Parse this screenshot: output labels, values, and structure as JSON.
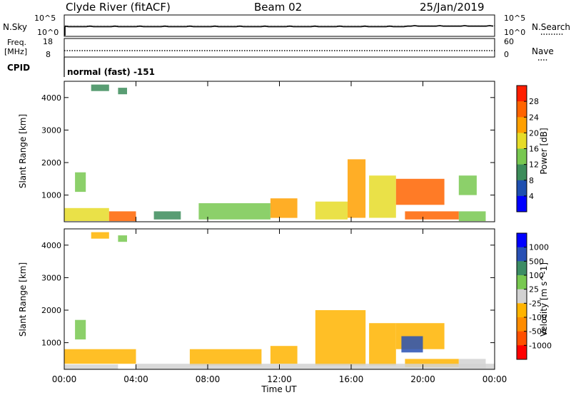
{
  "header": {
    "station": "Clyde River (fitACF)",
    "beam": "Beam 02",
    "date": "25/Jan/2019"
  },
  "strip_panel": {
    "left_label": "N.Sky",
    "left_ticks": [
      "10^5",
      "10^0"
    ],
    "right_label": "N.Search",
    "right_ticks": [
      "10^5",
      "10^0"
    ]
  },
  "freq_panel": {
    "left_label_line1": "Freq.",
    "left_label_line2": "[MHz]",
    "left_ticks": [
      "18",
      "8"
    ],
    "right_label": "Nave",
    "right_ticks": [
      "60",
      "0"
    ]
  },
  "cpid": {
    "label": "CPID",
    "value": "normal (fast) -151"
  },
  "time_axis": {
    "ticks": [
      "00:00",
      "04:00",
      "08:00",
      "12:00",
      "16:00",
      "20:00",
      "00:00"
    ],
    "label": "Time UT"
  },
  "colors": {
    "power_scale": [
      "#0000ff",
      "#1e4fb0",
      "#3c8c5a",
      "#78c850",
      "#e6dc28",
      "#ffa000",
      "#ff6400",
      "#ff1e00"
    ],
    "velocity_scale": [
      "#ff0000",
      "#ff5000",
      "#ff8c00",
      "#ffb400",
      "#d2d2d2",
      "#78c850",
      "#3c8c64",
      "#2850b4",
      "#0000ff"
    ]
  },
  "chart_data": [
    {
      "type": "heatmap",
      "name": "power",
      "ylabel": "Slant Range [km]",
      "yticks": [
        "1000",
        "2000",
        "3000",
        "4000"
      ],
      "ylim": [
        180,
        4500
      ],
      "xlim": [
        0,
        24
      ],
      "colorbar": {
        "label": "Power [dB]",
        "ticks": [
          "4",
          "8",
          "12",
          "16",
          "20",
          "24",
          "28"
        ],
        "range": [
          0,
          30
        ]
      },
      "cells": [
        [
          0.0,
          2.5,
          200,
          600,
          18
        ],
        [
          2.5,
          4.0,
          200,
          500,
          24
        ],
        [
          0.6,
          1.2,
          1100,
          1700,
          13
        ],
        [
          5.0,
          6.5,
          250,
          500,
          10
        ],
        [
          7.5,
          11.5,
          250,
          750,
          14
        ],
        [
          11.5,
          13.0,
          300,
          900,
          19
        ],
        [
          14.0,
          15.8,
          250,
          800,
          16
        ],
        [
          15.8,
          16.8,
          300,
          2100,
          21
        ],
        [
          17.0,
          18.5,
          300,
          1600,
          17
        ],
        [
          18.5,
          21.2,
          700,
          1500,
          24
        ],
        [
          19.0,
          22.0,
          250,
          500,
          25
        ],
        [
          22.0,
          23.5,
          200,
          500,
          14
        ],
        [
          22.0,
          23.0,
          1000,
          1600,
          12
        ],
        [
          1.5,
          2.5,
          4200,
          4400,
          8
        ],
        [
          3.0,
          3.5,
          4100,
          4300,
          10
        ]
      ]
    },
    {
      "type": "heatmap",
      "name": "velocity",
      "ylabel": "Slant Range [km]",
      "yticks": [
        "1000",
        "2000",
        "3000",
        "4000"
      ],
      "ylim": [
        180,
        4500
      ],
      "xlim": [
        0,
        24
      ],
      "colorbar": {
        "label": "Velocity [m s^-1]",
        "ticks": [
          "1000",
          "500",
          "100",
          "25",
          "-25",
          "-100",
          "-500",
          "-1000"
        ],
        "range": [
          -1200,
          1200
        ]
      },
      "cells": [
        [
          0.0,
          4.0,
          350,
          800,
          -200
        ],
        [
          0.0,
          3.0,
          180,
          330,
          40
        ],
        [
          0.6,
          1.2,
          1100,
          1700,
          150
        ],
        [
          7.0,
          11.0,
          300,
          800,
          -150
        ],
        [
          11.5,
          13.0,
          350,
          900,
          -300
        ],
        [
          14.0,
          16.8,
          300,
          2000,
          -250
        ],
        [
          17.0,
          18.5,
          300,
          1600,
          -150
        ],
        [
          18.5,
          21.2,
          800,
          1600,
          -200
        ],
        [
          18.8,
          20.0,
          700,
          1200,
          700
        ],
        [
          19.0,
          22.0,
          250,
          500,
          -180
        ],
        [
          4.0,
          24.0,
          180,
          350,
          40
        ],
        [
          22.0,
          23.5,
          200,
          500,
          120
        ],
        [
          1.5,
          2.5,
          4200,
          4400,
          -300
        ],
        [
          3.0,
          3.5,
          4100,
          4300,
          200
        ]
      ]
    }
  ]
}
